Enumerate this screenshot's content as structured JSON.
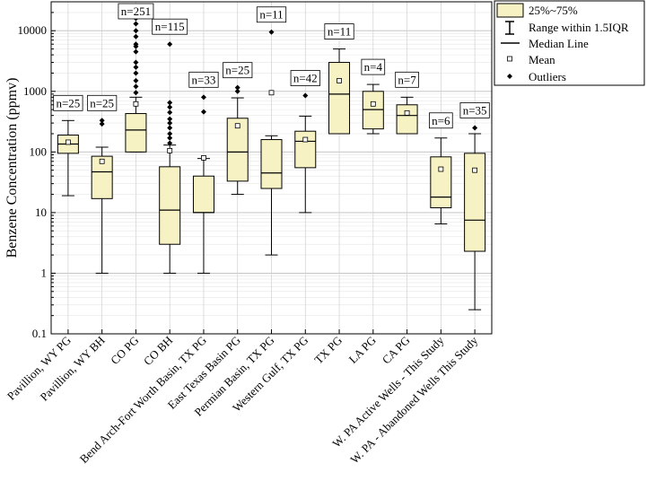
{
  "chart_data": {
    "type": "box",
    "ylabel": "Benzene Concentration (ppmv)",
    "yscale": "log",
    "ylim": [
      0.1,
      30000
    ],
    "yticks": [
      0.1,
      1,
      10,
      100,
      1000,
      10000
    ],
    "ytick_labels": [
      "0.1",
      "1",
      "10",
      "100",
      "1000",
      "10000"
    ],
    "legend": {
      "position": "top-right",
      "box_label": "25%~75%",
      "range_label": "Range within 1.5IQR",
      "median_label": "Median Line",
      "mean_label": "Mean",
      "outliers_label": "Outliers"
    },
    "categories": [
      "Pavillion, WY PG",
      "Pavillion, WY BH",
      "CO PG",
      "CO BH",
      "Bend Arch-Fort Worth Basin, TX PG",
      "East Texas Basin PG",
      "Permian Basin, TX PG",
      "Western Gulf, TX PG",
      "TX PG",
      "LA PG",
      "CA PG",
      "W. PA Active Wells - This Study",
      "W. PA - Abandoned Wells This Study"
    ],
    "boxes": [
      {
        "n_label": "n=25",
        "whisker_low": 19,
        "q1": 95,
        "median": 135,
        "q3": 190,
        "whisker_high": 330,
        "mean": 145,
        "outliers": []
      },
      {
        "n_label": "n=25",
        "whisker_low": 1,
        "q1": 17,
        "median": 47,
        "q3": 85,
        "whisker_high": 120,
        "mean": 70,
        "outliers": [
          290,
          330
        ]
      },
      {
        "n_label": "n=251",
        "whisker_low": 100,
        "q1": 100,
        "median": 230,
        "q3": 430,
        "whisker_high": 800,
        "mean": 620,
        "outliers": [
          950,
          1200,
          1500,
          2000,
          2500,
          3000,
          4500,
          5500,
          6000,
          8000,
          10000,
          13000,
          16000
        ]
      },
      {
        "n_label": "n=115",
        "whisker_low": 1,
        "q1": 3,
        "median": 11,
        "q3": 57,
        "whisker_high": 130,
        "mean": 105,
        "outliers": [
          140,
          170,
          200,
          250,
          300,
          350,
          450,
          550,
          650,
          6000
        ]
      },
      {
        "n_label": "n=33",
        "whisker_low": 1,
        "q1": 10,
        "median": 10,
        "q3": 40,
        "whisker_high": 78,
        "mean": 80,
        "outliers": [
          460,
          800
        ]
      },
      {
        "n_label": "n=25",
        "whisker_low": 20,
        "q1": 33,
        "median": 100,
        "q3": 360,
        "whisker_high": 780,
        "mean": 270,
        "outliers": [
          1000,
          1150
        ]
      },
      {
        "n_label": "n=11",
        "whisker_low": 2,
        "q1": 25,
        "median": 45,
        "q3": 160,
        "whisker_high": 185,
        "mean": 950,
        "outliers": [
          9500
        ]
      },
      {
        "n_label": "n=42",
        "whisker_low": 10,
        "q1": 55,
        "median": 150,
        "q3": 220,
        "whisker_high": 390,
        "mean": 160,
        "outliers": [
          850
        ]
      },
      {
        "n_label": "n=11",
        "whisker_low": 200,
        "q1": 200,
        "median": 900,
        "q3": 3000,
        "whisker_high": 5000,
        "mean": 1500,
        "outliers": []
      },
      {
        "n_label": "n=4",
        "whisker_low": 200,
        "q1": 240,
        "median": 500,
        "q3": 1000,
        "whisker_high": 1300,
        "mean": 620,
        "outliers": []
      },
      {
        "n_label": "n=7",
        "whisker_low": 200,
        "q1": 200,
        "median": 400,
        "q3": 600,
        "whisker_high": 800,
        "mean": 440,
        "outliers": []
      },
      {
        "n_label": "n=6",
        "whisker_low": 6.5,
        "q1": 12,
        "median": 18,
        "q3": 83,
        "whisker_high": 170,
        "mean": 52,
        "outliers": []
      },
      {
        "n_label": "n=35",
        "whisker_low": 0.25,
        "q1": 2.3,
        "median": 7.5,
        "q3": 95,
        "whisker_high": 200,
        "mean": 50,
        "outliers": [
          250
        ]
      }
    ]
  }
}
